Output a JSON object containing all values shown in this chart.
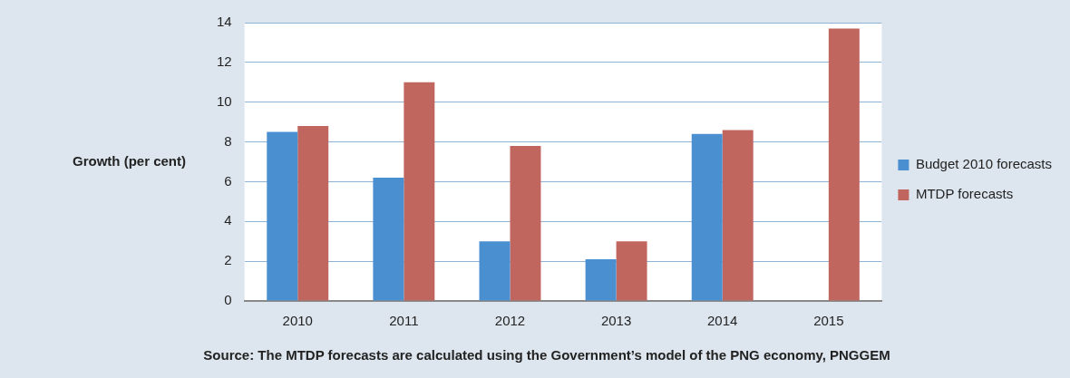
{
  "chart_data": {
    "type": "bar",
    "ylabel": "Growth (per cent)",
    "categories": [
      "2010",
      "2011",
      "2012",
      "2013",
      "2014",
      "2015"
    ],
    "series": [
      {
        "name": "Budget 2010 forecasts",
        "color": "#4a8fcf",
        "values": [
          8.5,
          6.2,
          3.0,
          2.1,
          8.4,
          null
        ]
      },
      {
        "name": "MTDP forecasts",
        "color": "#c0665f",
        "values": [
          8.8,
          11.0,
          7.8,
          3.0,
          8.6,
          13.7
        ]
      }
    ],
    "ylim": [
      0,
      14
    ],
    "yticks": [
      0,
      2,
      4,
      6,
      8,
      10,
      12,
      14
    ],
    "grid": "y",
    "legend": "right",
    "annotations": [
      "Source: The MTDP forecasts are calculated using the Government’s model of the PNG economy, PNGGEM"
    ]
  }
}
